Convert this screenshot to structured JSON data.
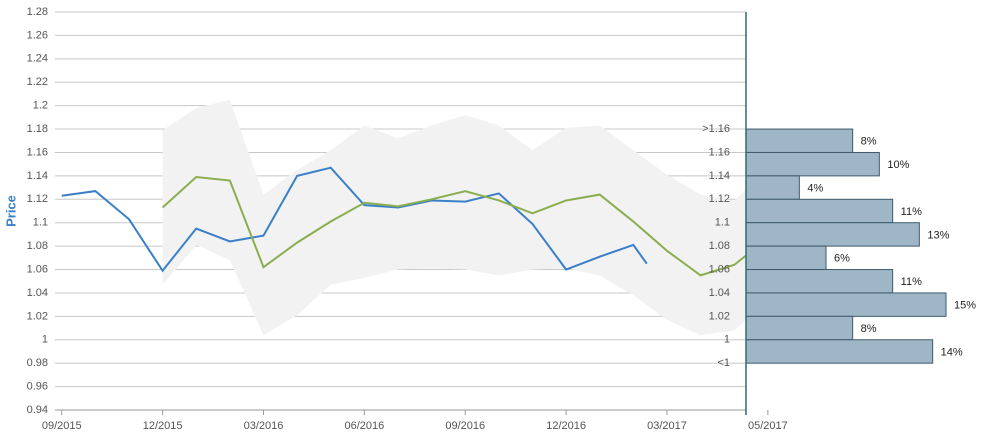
{
  "chart_data": [
    {
      "type": "line",
      "y_label": "Price",
      "xlim": [
        -0.2,
        20.35
      ],
      "xticks": [
        {
          "value": 0,
          "label": "09/2015"
        },
        {
          "value": 3,
          "label": "12/2015"
        },
        {
          "value": 6,
          "label": "03/2016"
        },
        {
          "value": 9,
          "label": "06/2016"
        },
        {
          "value": 12,
          "label": "09/2016"
        },
        {
          "value": 15,
          "label": "12/2016"
        },
        {
          "value": 18,
          "label": "03/2017"
        },
        {
          "value": 21,
          "label": "05/2017"
        }
      ],
      "ylim": [
        0.94,
        1.28
      ],
      "yticks": [
        0.94,
        0.96,
        0.98,
        1,
        1.02,
        1.04,
        1.06,
        1.08,
        1.1,
        1.12,
        1.14,
        1.16,
        1.18,
        1.2,
        1.22,
        1.24,
        1.26,
        1.28
      ],
      "grid": true,
      "band": {
        "color": "#f2f2f2",
        "x": [
          3,
          4,
          5,
          6,
          7,
          8,
          9,
          10,
          11,
          12,
          13,
          14,
          15,
          16,
          17,
          18,
          19,
          20,
          20.35
        ],
        "high": [
          1.179,
          1.198,
          1.205,
          1.124,
          1.145,
          1.162,
          1.183,
          1.172,
          1.183,
          1.192,
          1.183,
          1.162,
          1.181,
          1.183,
          1.162,
          1.141,
          1.124,
          1.119,
          1.128
        ],
        "low": [
          1.047,
          1.081,
          1.068,
          1.004,
          1.021,
          1.047,
          1.053,
          1.06,
          1.061,
          1.06,
          1.055,
          1.06,
          1.061,
          1.055,
          1.038,
          1.017,
          1.004,
          1.008,
          1.017
        ]
      },
      "series": [
        {
          "color": "#3a7fc8",
          "x": [
            0,
            1,
            2,
            3,
            4,
            5,
            6,
            7,
            8,
            9,
            10,
            11,
            12,
            13,
            14,
            15,
            16,
            17,
            17.4
          ],
          "values": [
            1.123,
            1.127,
            1.103,
            1.059,
            1.095,
            1.084,
            1.089,
            1.14,
            1.147,
            1.115,
            1.113,
            1.119,
            1.118,
            1.125,
            1.099,
            1.06,
            1.071,
            1.081,
            1.065
          ]
        },
        {
          "color": "#8aae4f",
          "x": [
            3,
            4,
            5,
            6,
            7,
            8,
            9,
            10,
            11,
            12,
            13,
            14,
            15,
            16,
            17,
            18,
            19,
            20,
            20.35
          ],
          "values": [
            1.113,
            1.139,
            1.136,
            1.062,
            1.083,
            1.101,
            1.117,
            1.114,
            1.12,
            1.127,
            1.119,
            1.108,
            1.119,
            1.124,
            1.101,
            1.076,
            1.055,
            1.064,
            1.072
          ]
        }
      ]
    },
    {
      "type": "histogram",
      "bins": [
        {
          "value": 1.18,
          "label": ">1.16"
        },
        {
          "value": 1.16,
          "label": "1.16"
        },
        {
          "value": 1.14,
          "label": "1.14"
        },
        {
          "value": 1.12,
          "label": "1.12"
        },
        {
          "value": 1.1,
          "label": "1.1"
        },
        {
          "value": 1.08,
          "label": "1.08"
        },
        {
          "value": 1.06,
          "label": "1.06"
        },
        {
          "value": 1.04,
          "label": "1.04"
        },
        {
          "value": 1.02,
          "label": "1.02"
        },
        {
          "value": 1,
          "label": "1"
        },
        {
          "value": 0.98,
          "label": "<1"
        }
      ],
      "values": [
        8,
        10,
        4,
        11,
        13,
        6,
        11,
        15,
        8,
        14
      ],
      "value_labels": [
        "8%",
        "10%",
        "4%",
        "11%",
        "13%",
        "6%",
        "11%",
        "15%",
        "8%",
        "14%"
      ],
      "xlim": [
        0,
        18
      ],
      "color": "#9fb6c6",
      "edge_color": "#3d5a6c"
    }
  ]
}
